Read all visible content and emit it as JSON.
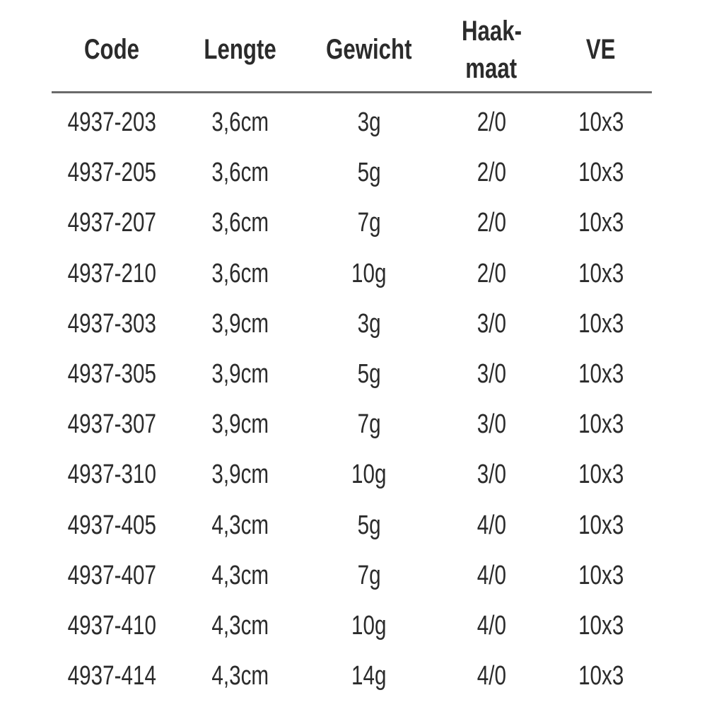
{
  "table": {
    "headers": [
      "Code",
      "Lengte",
      "Gewicht",
      "Haak-\nmaat",
      "VE"
    ],
    "header_lines": {
      "haakmaat_1": "Haak-",
      "haakmaat_2": "maat"
    },
    "rows": [
      [
        "4937-203",
        "3,6cm",
        "3g",
        "2/0",
        "10x3"
      ],
      [
        "4937-205",
        "3,6cm",
        "5g",
        "2/0",
        "10x3"
      ],
      [
        "4937-207",
        "3,6cm",
        "7g",
        "2/0",
        "10x3"
      ],
      [
        "4937-210",
        "3,6cm",
        "10g",
        "2/0",
        "10x3"
      ],
      [
        "4937-303",
        "3,9cm",
        "3g",
        "3/0",
        "10x3"
      ],
      [
        "4937-305",
        "3,9cm",
        "5g",
        "3/0",
        "10x3"
      ],
      [
        "4937-307",
        "3,9cm",
        "7g",
        "3/0",
        "10x3"
      ],
      [
        "4937-310",
        "3,9cm",
        "10g",
        "3/0",
        "10x3"
      ],
      [
        "4937-405",
        "4,3cm",
        "5g",
        "4/0",
        "10x3"
      ],
      [
        "4937-407",
        "4,3cm",
        "7g",
        "4/0",
        "10x3"
      ],
      [
        "4937-410",
        "4,3cm",
        "10g",
        "4/0",
        "10x3"
      ],
      [
        "4937-414",
        "4,3cm",
        "14g",
        "4/0",
        "10x3"
      ]
    ]
  },
  "colors": {
    "text": "#2b2b2b",
    "rule": "#6a6a6a"
  }
}
